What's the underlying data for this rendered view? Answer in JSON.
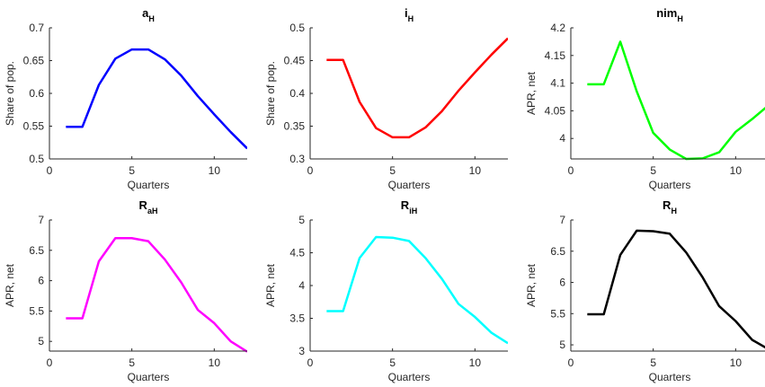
{
  "chart_data": [
    {
      "type": "line",
      "title": "a",
      "title_subscript": "H",
      "xlabel": "Quarters",
      "ylabel": "Share of pop.",
      "x": [
        1,
        2,
        3,
        4,
        5,
        6,
        7,
        8,
        9,
        10,
        11,
        12
      ],
      "series": [
        {
          "color": "#0000ff",
          "values": [
            0.549,
            0.549,
            0.613,
            0.653,
            0.667,
            0.667,
            0.652,
            0.627,
            0.596,
            0.568,
            0.541,
            0.516
          ]
        }
      ],
      "xlim": [
        0,
        12
      ],
      "xticks": [
        0,
        5,
        10
      ],
      "ylim": [
        0.5,
        0.7
      ],
      "yticks": [
        0.5,
        0.55,
        0.6,
        0.65,
        0.7
      ]
    },
    {
      "type": "line",
      "title": "i",
      "title_subscript": "H",
      "xlabel": "Quarters",
      "ylabel": "Share of pop.",
      "x": [
        1,
        2,
        3,
        4,
        5,
        6,
        7,
        8,
        9,
        10,
        11,
        12
      ],
      "series": [
        {
          "color": "#ff0000",
          "values": [
            0.451,
            0.451,
            0.387,
            0.347,
            0.333,
            0.333,
            0.348,
            0.373,
            0.404,
            0.432,
            0.459,
            0.484
          ]
        }
      ],
      "xlim": [
        0,
        12
      ],
      "xticks": [
        0,
        5,
        10
      ],
      "ylim": [
        0.3,
        0.5
      ],
      "yticks": [
        0.3,
        0.35,
        0.4,
        0.45,
        0.5
      ]
    },
    {
      "type": "line",
      "title": "nim",
      "title_subscript": "H",
      "xlabel": "Quarters",
      "ylabel": "APR, net",
      "x": [
        1,
        2,
        3,
        4,
        5,
        6,
        7,
        8,
        9,
        10,
        11,
        12
      ],
      "series": [
        {
          "color": "#00ff00",
          "values": [
            4.098,
            4.098,
            4.175,
            4.085,
            4.01,
            3.98,
            3.963,
            3.964,
            3.975,
            4.012,
            4.035,
            4.06
          ]
        }
      ],
      "xlim": [
        0,
        12
      ],
      "xticks": [
        0,
        5,
        10
      ],
      "ylim": [
        3.963,
        4.2
      ],
      "yticks": [
        4,
        4.05,
        4.1,
        4.15,
        4.2
      ]
    },
    {
      "type": "line",
      "title": "R",
      "title_subscript": "aH",
      "xlabel": "Quarters",
      "ylabel": "APR, net",
      "x": [
        1,
        2,
        3,
        4,
        5,
        6,
        7,
        8,
        9,
        10,
        11,
        12
      ],
      "series": [
        {
          "color": "#ff00ff",
          "values": [
            5.38,
            5.38,
            6.32,
            6.7,
            6.7,
            6.65,
            6.35,
            5.97,
            5.52,
            5.3,
            5.0,
            4.83
          ]
        }
      ],
      "xlim": [
        0,
        12
      ],
      "xticks": [
        0,
        5,
        10
      ],
      "ylim": [
        4.84,
        7
      ],
      "yticks": [
        5,
        5.5,
        6,
        6.5,
        7
      ]
    },
    {
      "type": "line",
      "title": "R",
      "title_subscript": "iH",
      "xlabel": "Quarters",
      "ylabel": "APR, net",
      "x": [
        1,
        2,
        3,
        4,
        5,
        6,
        7,
        8,
        9,
        10,
        11,
        12
      ],
      "series": [
        {
          "color": "#00ffff",
          "values": [
            3.61,
            3.61,
            4.42,
            4.74,
            4.73,
            4.68,
            4.42,
            4.1,
            3.72,
            3.52,
            3.28,
            3.12
          ]
        }
      ],
      "xlim": [
        0,
        12
      ],
      "xticks": [
        0,
        5,
        10
      ],
      "ylim": [
        3,
        5
      ],
      "yticks": [
        3,
        3.5,
        4,
        4.5,
        5
      ]
    },
    {
      "type": "line",
      "title": "R",
      "title_subscript": "H",
      "xlabel": "Quarters",
      "ylabel": "APR, net",
      "x": [
        1,
        2,
        3,
        4,
        5,
        6,
        7,
        8,
        9,
        10,
        11,
        12
      ],
      "series": [
        {
          "color": "#000000",
          "values": [
            5.49,
            5.49,
            6.44,
            6.83,
            6.82,
            6.78,
            6.48,
            6.08,
            5.62,
            5.38,
            5.08,
            4.93
          ]
        }
      ],
      "xlim": [
        0,
        12
      ],
      "xticks": [
        0,
        5,
        10
      ],
      "ylim": [
        4.9,
        7
      ],
      "yticks": [
        5,
        5.5,
        6,
        6.5,
        7
      ]
    }
  ]
}
